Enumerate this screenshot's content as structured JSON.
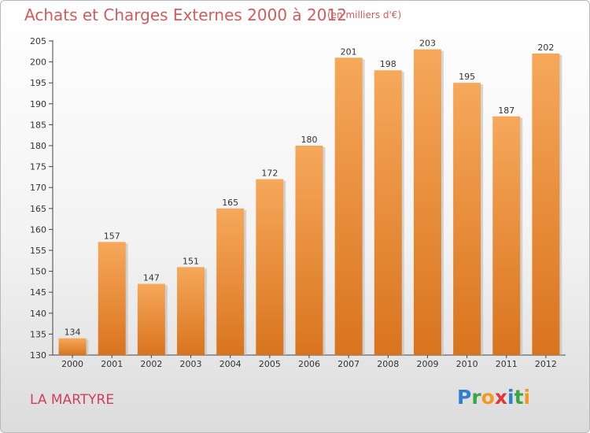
{
  "header": {
    "title": "Achats et Charges Externes 2000 à 2012",
    "unit_note": "(en milliers d'€)"
  },
  "footer": {
    "commune": "LA MARTYRE",
    "logo_letters": [
      "P",
      "r",
      "o",
      "x",
      "i",
      "t",
      "i"
    ],
    "logo_colors": [
      "#2f7fd0",
      "#3da640",
      "#f29a1f",
      "#e0383a",
      "#2f7fd0",
      "#3da640",
      "#f29a1f"
    ]
  },
  "chart_data": {
    "type": "bar",
    "categories": [
      "2000",
      "2001",
      "2002",
      "2003",
      "2004",
      "2005",
      "2006",
      "2007",
      "2008",
      "2009",
      "2010",
      "2011",
      "2012"
    ],
    "values": [
      134,
      157,
      147,
      151,
      165,
      172,
      180,
      201,
      198,
      203,
      195,
      187,
      202
    ],
    "title": "Achats et Charges Externes 2000 à 2012",
    "xlabel": "",
    "ylabel": "",
    "ylim": [
      130,
      205
    ],
    "yticks": [
      130,
      135,
      140,
      145,
      150,
      155,
      160,
      165,
      170,
      175,
      180,
      185,
      190,
      195,
      200,
      205
    ],
    "bar_color_top": "#f6a85a",
    "bar_color_bottom": "#d9741e",
    "grid": false
  }
}
